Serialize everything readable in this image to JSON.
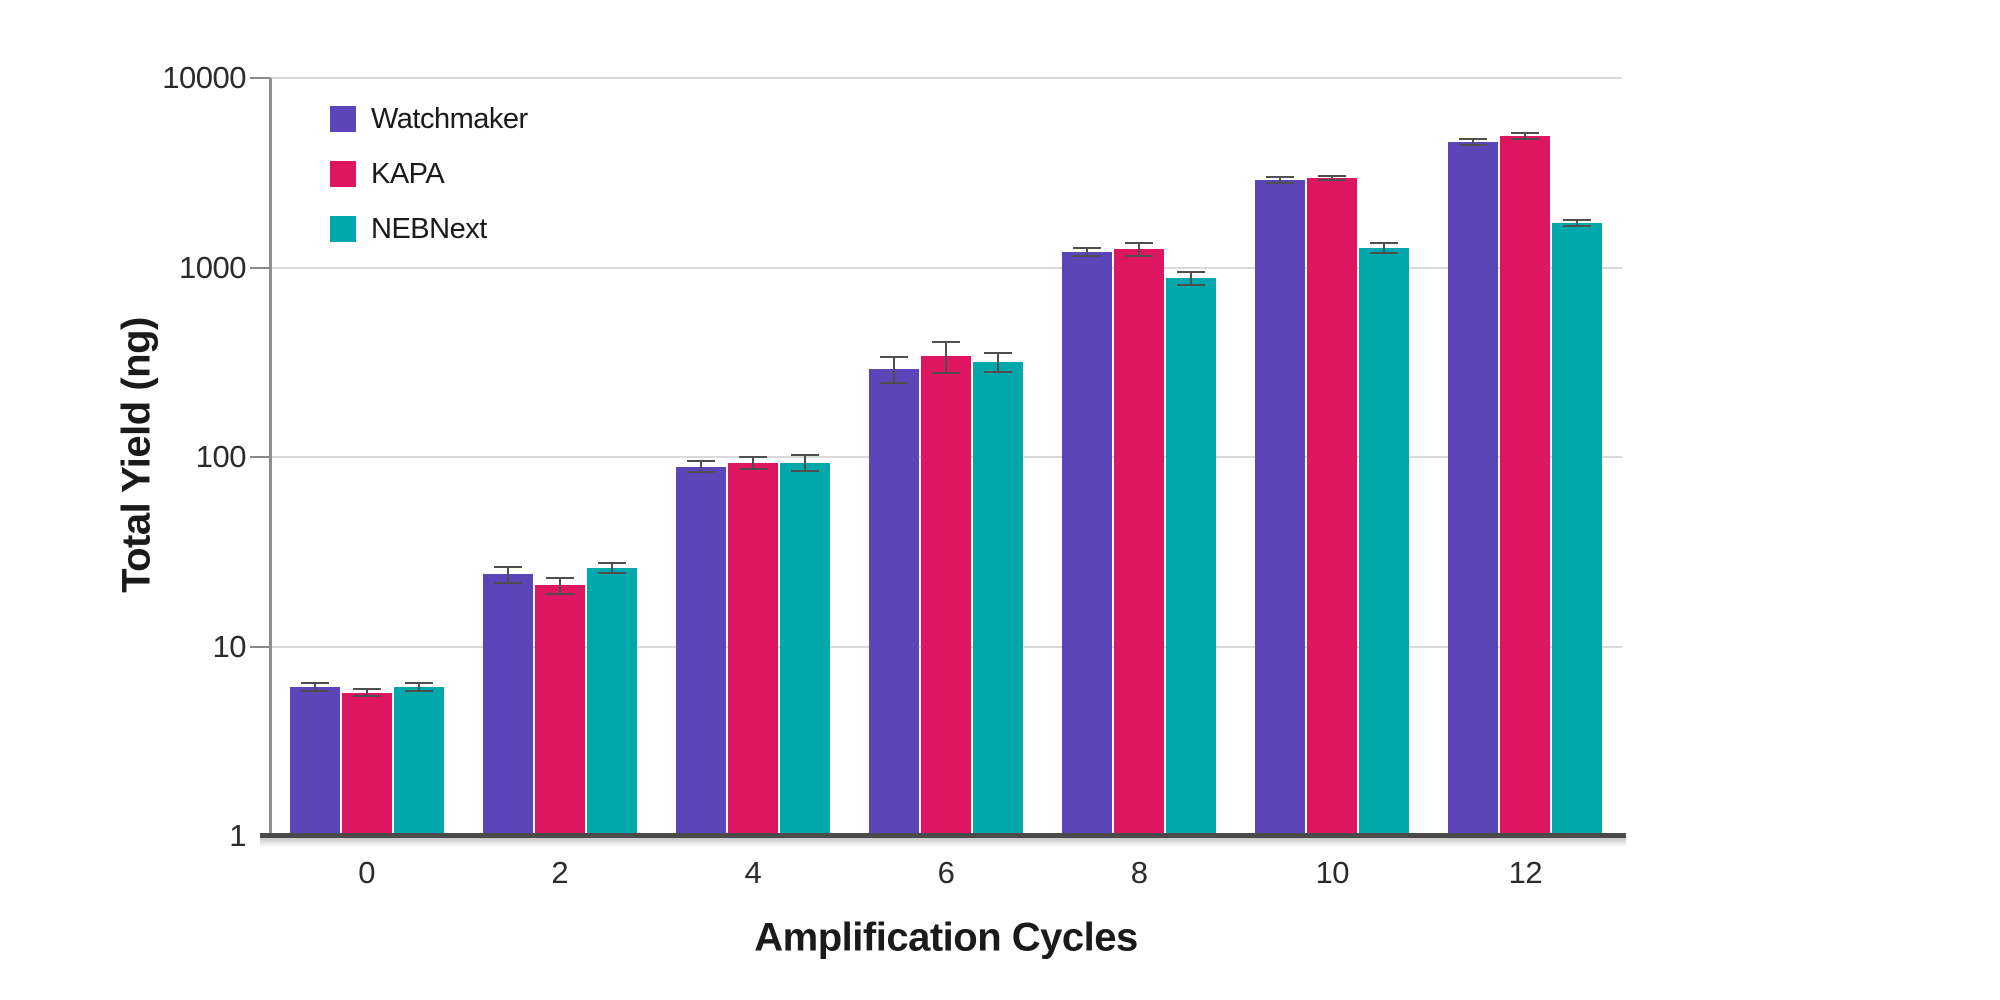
{
  "chart_data": {
    "type": "bar",
    "subtype": "grouped-vertical",
    "y_scale": "log",
    "title": "",
    "xlabel": "Amplification Cycles",
    "ylabel": "Total Yield (ng)",
    "categories": [
      "0",
      "2",
      "4",
      "6",
      "8",
      "10",
      "12"
    ],
    "series": [
      {
        "name": "Watchmaker",
        "color": "#5C44B9",
        "values": [
          6.1,
          24,
          89,
          292,
          1210,
          2900,
          4600
        ],
        "errors": [
          0.3,
          2.3,
          6,
          46,
          60,
          100,
          165
        ]
      },
      {
        "name": "KAPA",
        "color": "#DE1560",
        "values": [
          5.7,
          21,
          93,
          340,
          1250,
          2960,
          4940
        ],
        "errors": [
          0.25,
          2.1,
          7,
          63,
          95,
          75,
          185
        ]
      },
      {
        "name": "NEBNext",
        "color": "#00A8AB",
        "values": [
          6.1,
          26,
          93,
          318,
          880,
          1270,
          1720
        ],
        "errors": [
          0.3,
          1.6,
          9,
          36,
          67,
          77,
          60
        ]
      }
    ],
    "ylim": [
      1,
      10000
    ],
    "yticks": [
      "1",
      "10",
      "100",
      "1000",
      "10000"
    ],
    "grid": true,
    "error_bars": true,
    "legend_position": "upper-left-inside",
    "colors": {
      "grid": "#dadada",
      "axis_line": "#8f8f8f",
      "baseline": "#4a4a4a",
      "error_bar": "#4f4f4f",
      "text": "#1a1a1a"
    }
  }
}
